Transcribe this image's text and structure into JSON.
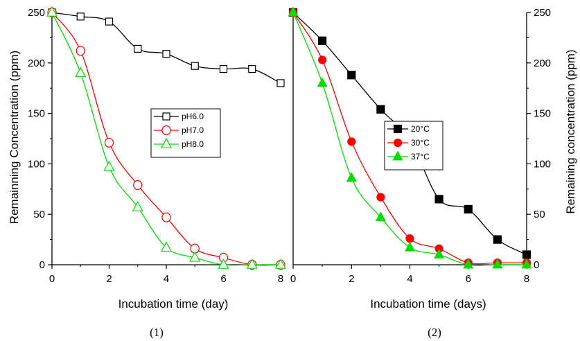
{
  "chart_data": [
    {
      "type": "line",
      "panel_label": "(1)",
      "xlabel": "Incubation time (day)",
      "ylabel": "Remainning Concentration (ppm)",
      "xlim": [
        0,
        8
      ],
      "ylim": [
        0,
        250
      ],
      "xticks": [
        0,
        2,
        4,
        6,
        8
      ],
      "yticks": [
        0,
        50,
        100,
        150,
        200,
        250
      ],
      "grid": false,
      "legend_position": "center-right",
      "series": [
        {
          "name": "pH6.0",
          "marker": "open-square",
          "color": "#000000",
          "x": [
            0,
            1,
            2,
            3,
            4,
            5,
            6,
            7,
            8
          ],
          "y": [
            250,
            246,
            241,
            214,
            209,
            197,
            194,
            194,
            180
          ]
        },
        {
          "name": "pH7.0",
          "marker": "open-circle",
          "color": "#ff0000",
          "x": [
            0,
            1,
            2,
            3,
            4,
            5,
            6,
            7,
            8
          ],
          "y": [
            250,
            212,
            121,
            79,
            47,
            16,
            7,
            0,
            0
          ]
        },
        {
          "name": "pH8.0",
          "marker": "open-triangle",
          "color": "#00dd00",
          "x": [
            0,
            1,
            2,
            3,
            4,
            5,
            6,
            7,
            8
          ],
          "y": [
            250,
            190,
            97,
            57,
            17,
            7,
            0,
            0,
            0
          ]
        }
      ]
    },
    {
      "type": "line",
      "panel_label": "(2)",
      "xlabel": "Incubation time (days)",
      "ylabel": "Remaining concentration (ppm)",
      "xlim": [
        0,
        8
      ],
      "ylim": [
        0,
        250
      ],
      "xticks": [
        0,
        2,
        4,
        6,
        8
      ],
      "yticks": [
        0,
        50,
        100,
        150,
        200,
        250
      ],
      "grid": false,
      "legend_position": "center-right",
      "series": [
        {
          "name": "20°C",
          "marker": "filled-square",
          "color": "#000000",
          "x": [
            0,
            1,
            2,
            3,
            4,
            5,
            6,
            7,
            8
          ],
          "y": [
            250,
            222,
            188,
            154,
            124,
            65,
            55,
            25,
            10
          ]
        },
        {
          "name": "30°C",
          "marker": "filled-circle",
          "color": "#ff0000",
          "x": [
            0,
            1,
            2,
            3,
            4,
            5,
            6,
            7,
            8
          ],
          "y": [
            250,
            203,
            122,
            67,
            26,
            16,
            2,
            2,
            2
          ]
        },
        {
          "name": "37°C",
          "marker": "filled-triangle",
          "color": "#00dd00",
          "x": [
            0,
            1,
            2,
            3,
            4,
            5,
            6,
            7,
            8
          ],
          "y": [
            250,
            180,
            86,
            47,
            17,
            10,
            0,
            0,
            0
          ]
        }
      ]
    }
  ]
}
